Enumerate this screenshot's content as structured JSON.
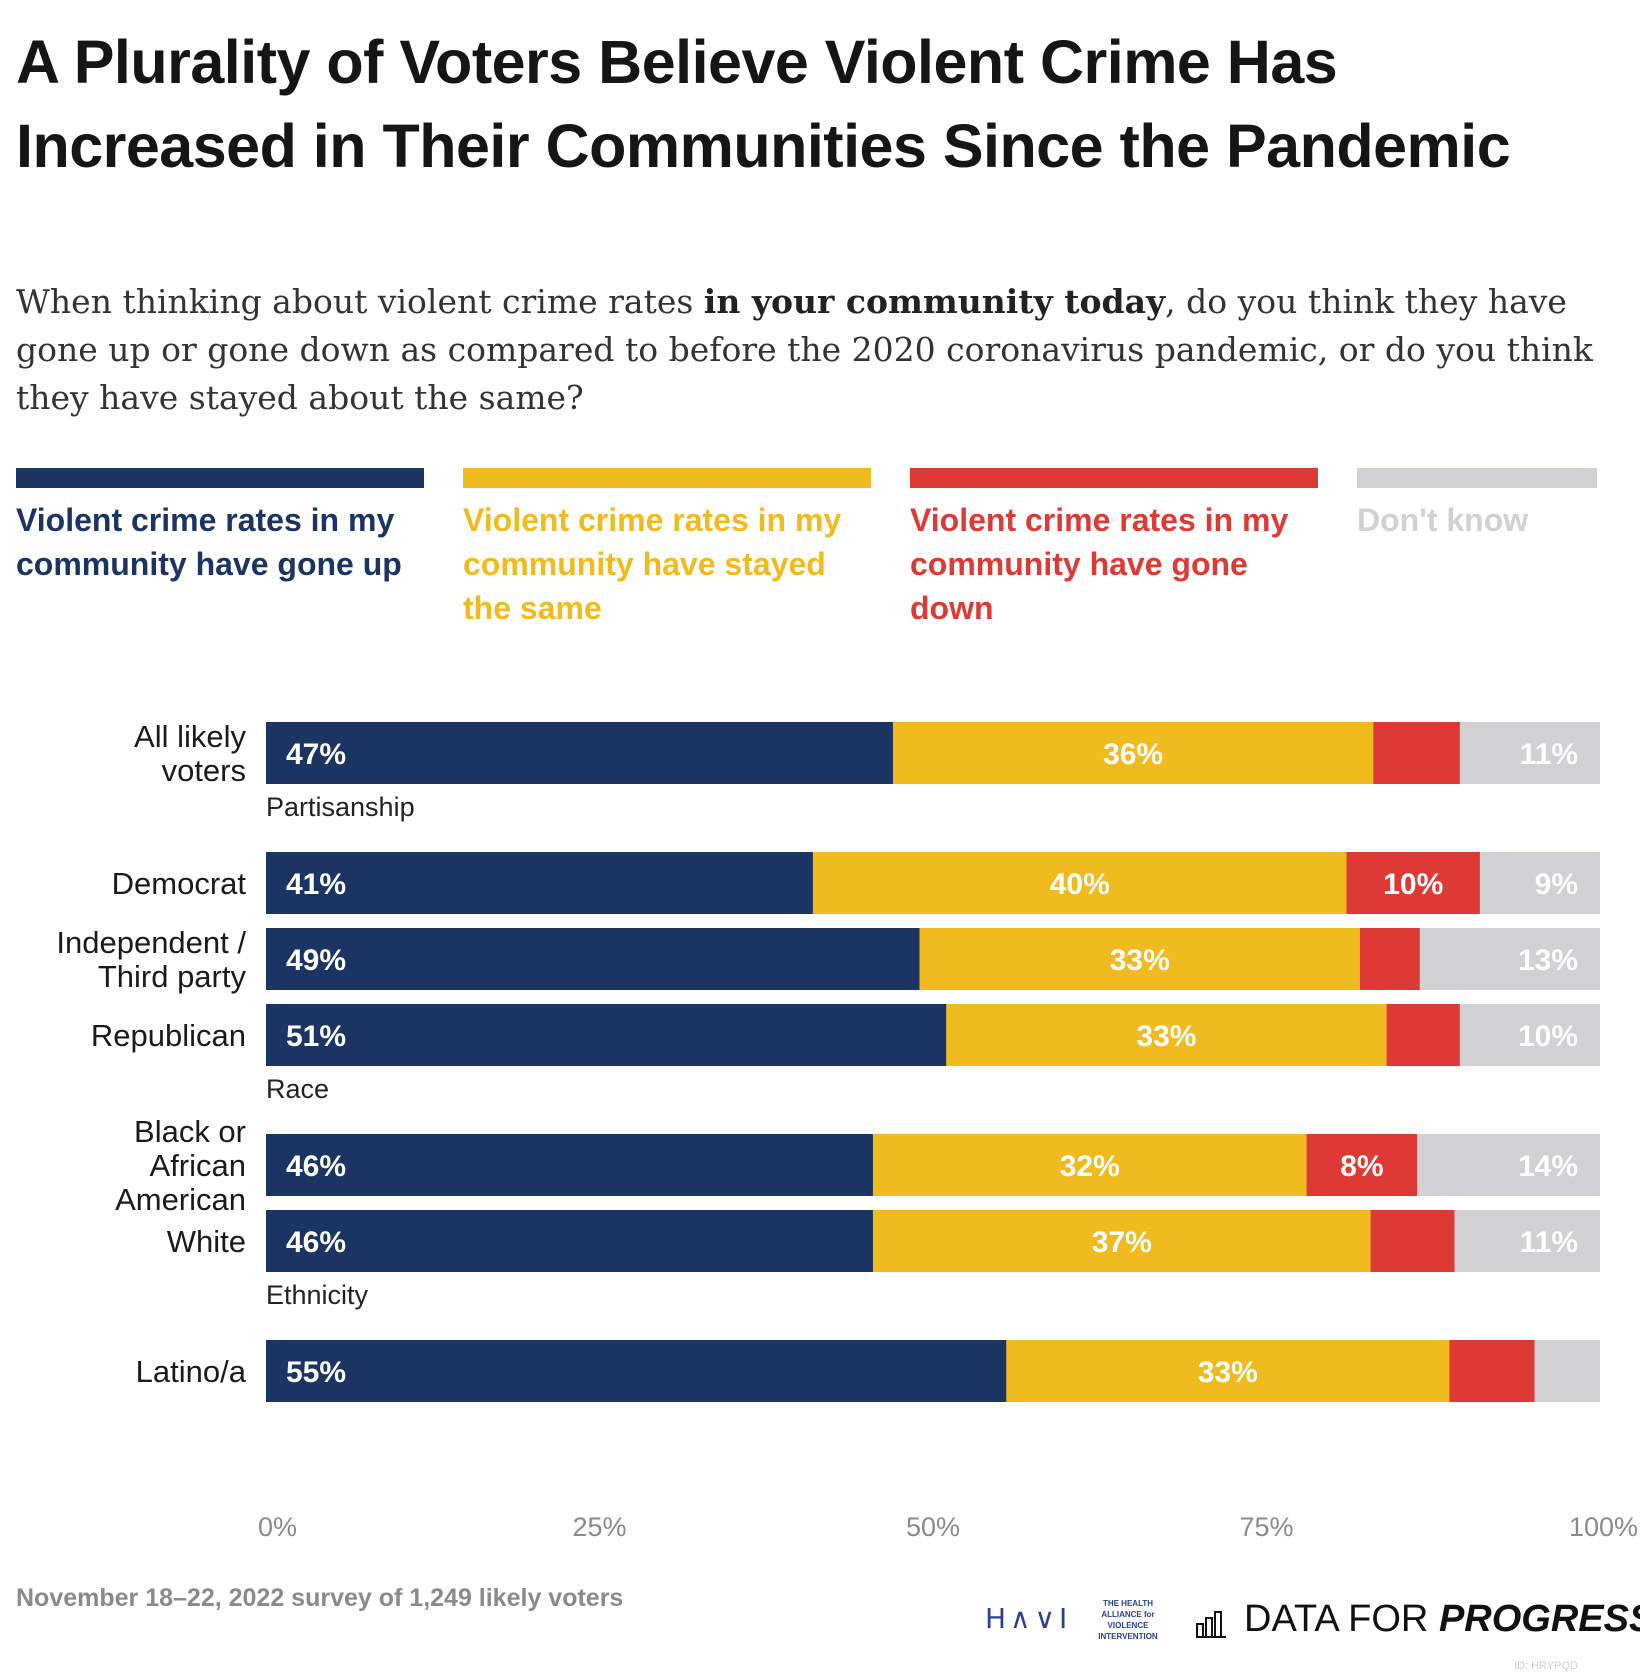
{
  "header": {
    "title": "A Plurality of Voters Believe Violent Crime Has Increased in Their Communities Since the Pandemic",
    "subtitle_pre": "When thinking about violent crime rates ",
    "subtitle_bold": "in your community today",
    "subtitle_post": ", do you think they have gone up or gone down as compared to before the 2020 coronavirus pandemic, or do you think they have stayed about the same?"
  },
  "legend": [
    {
      "label": "Violent crime rates in my community have gone up",
      "color": "#1c3461"
    },
    {
      "label": "Violent crime rates in my community have stayed the same",
      "color": "#efbb1f"
    },
    {
      "label": "Violent crime rates in my community have gone down",
      "color": "#dd3a35"
    },
    {
      "label": "Don't know",
      "color": "#d1d0d3"
    }
  ],
  "chart_data": {
    "type": "bar",
    "orientation": "horizontal",
    "stacked": true,
    "xlim": [
      0,
      100
    ],
    "x_ticks": [
      "0%",
      "25%",
      "50%",
      "75%",
      "100%"
    ],
    "series_names": [
      "Violent crime rates in my community have gone up",
      "Violent crime rates in my community have stayed the same",
      "Violent crime rates in my community have gone down",
      "Don't know"
    ],
    "colors": [
      "#1c3461",
      "#efbb1f",
      "#dd3a35",
      "#d1d0d3"
    ],
    "label_colors": [
      "#ffffff",
      "#ffffff",
      "#ffffff",
      "#ffffff"
    ],
    "groups": [
      {
        "heading": "",
        "rows": [
          {
            "label": [
              "All likely",
              "voters"
            ],
            "values": [
              47,
              36,
              6.5,
              10.5
            ],
            "labels": [
              "47%",
              "36%",
              "",
              "11%"
            ]
          }
        ]
      },
      {
        "heading": "Partisanship",
        "rows": [
          {
            "label": [
              "Democrat"
            ],
            "values": [
              41,
              40,
              10,
              9
            ],
            "labels": [
              "41%",
              "40%",
              "10%",
              "9%"
            ]
          },
          {
            "label": [
              "Independent /",
              "Third party"
            ],
            "values": [
              49,
              33,
              4.5,
              13.5
            ],
            "labels": [
              "49%",
              "33%",
              "",
              "13%"
            ]
          },
          {
            "label": [
              "Republican"
            ],
            "values": [
              51,
              33,
              5.5,
              10.5
            ],
            "labels": [
              "51%",
              "33%",
              "",
              "10%"
            ]
          }
        ]
      },
      {
        "heading": "Race",
        "rows": [
          {
            "label": [
              "Black or",
              "African",
              "American"
            ],
            "values": [
              45.5,
              32.5,
              8.3,
              13.7
            ],
            "labels": [
              "46%",
              "32%",
              "8%",
              "14%"
            ]
          },
          {
            "label": [
              "White"
            ],
            "values": [
              45.5,
              37.3,
              6.3,
              10.9
            ],
            "labels": [
              "46%",
              "37%",
              "",
              "11%"
            ]
          }
        ]
      },
      {
        "heading": "Ethnicity",
        "rows": [
          {
            "label": [
              "Latino/a"
            ],
            "values": [
              55.5,
              33.2,
              6.4,
              4.9
            ],
            "labels": [
              "55%",
              "33%",
              "",
              ""
            ]
          }
        ]
      }
    ]
  },
  "footer": {
    "note": "November 18–22, 2022 survey of 1,249 likely voters",
    "havi_mark": "H∧∨I",
    "havi_text": "THE HEALTH ALLIANCE for VIOLENCE INTERVENTION",
    "dfp_plain": "DATA FOR ",
    "dfp_bold": "PROGRESS",
    "id_tag": "ID: HRYPQD"
  }
}
